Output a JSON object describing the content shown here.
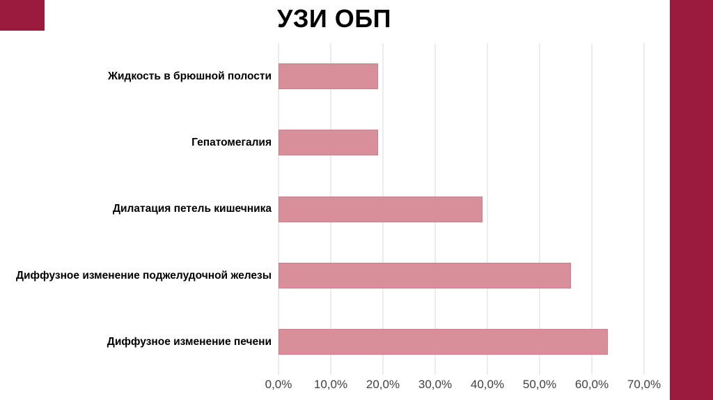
{
  "slide": {
    "title": "УЗИ ОБП",
    "accent_color": "#9B1B3E",
    "bar_fill_color": "#D98F99",
    "bar_border_color": "#C8808A",
    "gridline_color": "#D9D9D9",
    "tick_text_color": "#404040"
  },
  "chart_data": {
    "type": "bar",
    "orientation": "horizontal",
    "title": "УЗИ ОБП",
    "categories": [
      "Жидкость в брюшной полости",
      "Гепатомегалия",
      "Дилатация петель кишечника",
      "Диффузное изменение поджелудочной железы",
      "Диффузное изменение печени"
    ],
    "values": [
      19,
      19,
      39,
      56,
      63
    ],
    "value_unit": "%",
    "xlabel": "",
    "ylabel": "",
    "xlim": [
      0,
      70
    ],
    "x_tick_values": [
      0,
      10,
      20,
      30,
      40,
      50,
      60,
      70
    ],
    "x_tick_labels": [
      "0,0%",
      "10,0%",
      "20,0%",
      "30,0%",
      "40,0%",
      "50,0%",
      "60,0%",
      "70,0%"
    ],
    "grid": true,
    "legend": false
  }
}
